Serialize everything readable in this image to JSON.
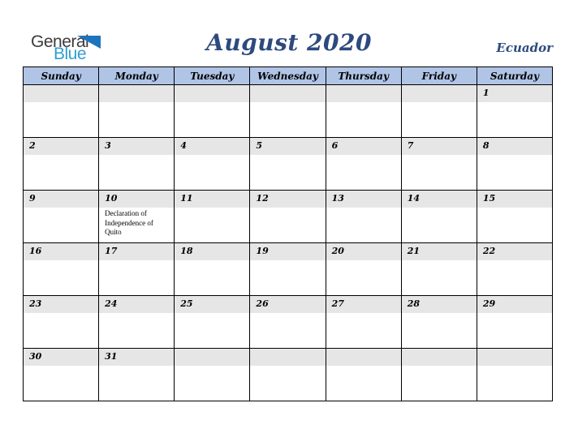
{
  "logo": {
    "text_primary": "General",
    "text_secondary": "Blue"
  },
  "header": {
    "title": "August 2020",
    "region": "Ecuador"
  },
  "calendar": {
    "day_headers": [
      "Sunday",
      "Monday",
      "Tuesday",
      "Wednesday",
      "Thursday",
      "Friday",
      "Saturday"
    ],
    "weeks": [
      {
        "days": [
          {
            "date": ""
          },
          {
            "date": ""
          },
          {
            "date": ""
          },
          {
            "date": ""
          },
          {
            "date": ""
          },
          {
            "date": ""
          },
          {
            "date": "1"
          }
        ]
      },
      {
        "days": [
          {
            "date": "2"
          },
          {
            "date": "3"
          },
          {
            "date": "4"
          },
          {
            "date": "5"
          },
          {
            "date": "6"
          },
          {
            "date": "7"
          },
          {
            "date": "8"
          }
        ]
      },
      {
        "days": [
          {
            "date": "9"
          },
          {
            "date": "10",
            "holiday": "Declaration of Independence of Quito"
          },
          {
            "date": "11"
          },
          {
            "date": "12"
          },
          {
            "date": "13"
          },
          {
            "date": "14"
          },
          {
            "date": "15"
          }
        ]
      },
      {
        "days": [
          {
            "date": "16"
          },
          {
            "date": "17"
          },
          {
            "date": "18"
          },
          {
            "date": "19"
          },
          {
            "date": "20"
          },
          {
            "date": "21"
          },
          {
            "date": "22"
          }
        ]
      },
      {
        "days": [
          {
            "date": "23"
          },
          {
            "date": "24"
          },
          {
            "date": "25"
          },
          {
            "date": "26"
          },
          {
            "date": "27"
          },
          {
            "date": "28"
          },
          {
            "date": "29"
          }
        ]
      },
      {
        "days": [
          {
            "date": "30"
          },
          {
            "date": "31"
          },
          {
            "date": ""
          },
          {
            "date": ""
          },
          {
            "date": ""
          },
          {
            "date": ""
          },
          {
            "date": ""
          }
        ]
      }
    ]
  },
  "colors": {
    "title_navy": "#2d4a7e",
    "weekday_header_blue": "#b0c4e6",
    "date_band_gray": "#e6e6e6",
    "logo_text_gray": "#3b3b3d",
    "logo_text_blue": "#2e9fd4",
    "logo_triangle_blue": "#1c75bc",
    "grid_border": "#000000"
  }
}
